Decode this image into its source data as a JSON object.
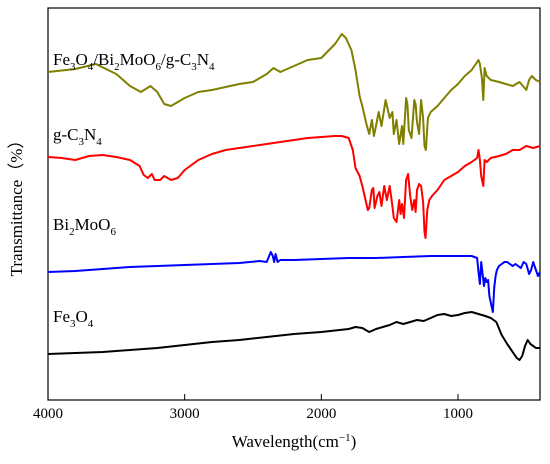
{
  "chart_data": {
    "type": "line",
    "title": "",
    "xlabel": "Wavelength(cm",
    "xlabel_sup": "−1",
    "xlabel_close": ")",
    "ylabel": "Transmittance（%）",
    "xlim": [
      4000,
      400
    ],
    "x_ticks": [
      4000,
      3000,
      2000,
      1000
    ],
    "x_tick_labels": [
      "4000",
      "3000",
      "2000",
      "1000"
    ],
    "y_ticks_shown": false,
    "grid": false,
    "series": [
      {
        "name": "Fe3O4/Bi2MoO6/g-C3N4",
        "color": "#808000",
        "label_parts": [
          [
            "Fe",
            "n"
          ],
          [
            "3",
            "s"
          ],
          [
            "O",
            "n"
          ],
          [
            "4",
            "s"
          ],
          [
            "/Bi",
            "n"
          ],
          [
            "2",
            "s"
          ],
          [
            "MoO",
            "n"
          ],
          [
            "6",
            "s"
          ],
          [
            "/g-C",
            "n"
          ],
          [
            "3",
            "s"
          ],
          [
            "N",
            "n"
          ],
          [
            "4",
            "s"
          ]
        ],
        "label_anchor": [
          4000,
          65
        ],
        "points": [
          [
            4000,
            72
          ],
          [
            3800,
            69
          ],
          [
            3650,
            64
          ],
          [
            3500,
            74
          ],
          [
            3400,
            86
          ],
          [
            3320,
            92
          ],
          [
            3250,
            86
          ],
          [
            3200,
            92
          ],
          [
            3150,
            104
          ],
          [
            3100,
            106
          ],
          [
            3000,
            98
          ],
          [
            2900,
            92
          ],
          [
            2800,
            90
          ],
          [
            2600,
            84
          ],
          [
            2500,
            82
          ],
          [
            2400,
            74
          ],
          [
            2350,
            68
          ],
          [
            2300,
            72
          ],
          [
            2200,
            66
          ],
          [
            2100,
            60
          ],
          [
            2000,
            58
          ],
          [
            1900,
            44
          ],
          [
            1850,
            34
          ],
          [
            1820,
            38
          ],
          [
            1780,
            50
          ],
          [
            1750,
            70
          ],
          [
            1720,
            96
          ],
          [
            1700,
            106
          ],
          [
            1670,
            124
          ],
          [
            1650,
            134
          ],
          [
            1630,
            120
          ],
          [
            1615,
            136
          ],
          [
            1600,
            126
          ],
          [
            1580,
            112
          ],
          [
            1560,
            126
          ],
          [
            1530,
            100
          ],
          [
            1500,
            118
          ],
          [
            1480,
            112
          ],
          [
            1470,
            134
          ],
          [
            1450,
            120
          ],
          [
            1430,
            144
          ],
          [
            1410,
            126
          ],
          [
            1400,
            144
          ],
          [
            1380,
            98
          ],
          [
            1370,
            104
          ],
          [
            1360,
            130
          ],
          [
            1340,
            138
          ],
          [
            1320,
            100
          ],
          [
            1310,
            104
          ],
          [
            1300,
            122
          ],
          [
            1285,
            134
          ],
          [
            1270,
            100
          ],
          [
            1255,
            118
          ],
          [
            1245,
            146
          ],
          [
            1235,
            150
          ],
          [
            1220,
            118
          ],
          [
            1200,
            112
          ],
          [
            1150,
            106
          ],
          [
            1100,
            98
          ],
          [
            1050,
            90
          ],
          [
            1000,
            84
          ],
          [
            950,
            76
          ],
          [
            900,
            70
          ],
          [
            880,
            66
          ],
          [
            860,
            62
          ],
          [
            850,
            60
          ],
          [
            840,
            64
          ],
          [
            825,
            78
          ],
          [
            815,
            100
          ],
          [
            805,
            68
          ],
          [
            790,
            76
          ],
          [
            760,
            80
          ],
          [
            700,
            82
          ],
          [
            650,
            84
          ],
          [
            600,
            86
          ],
          [
            550,
            82
          ],
          [
            500,
            90
          ],
          [
            480,
            80
          ],
          [
            460,
            76
          ],
          [
            430,
            80
          ],
          [
            400,
            82
          ]
        ]
      },
      {
        "name": "g-C3N4",
        "color": "#ff0000",
        "label_parts": [
          [
            "g-C",
            "n"
          ],
          [
            "3",
            "s"
          ],
          [
            "N",
            "n"
          ],
          [
            "4",
            "s"
          ]
        ],
        "label_anchor": [
          4000,
          140
        ],
        "points": [
          [
            4000,
            157
          ],
          [
            3900,
            158
          ],
          [
            3800,
            160
          ],
          [
            3700,
            156
          ],
          [
            3600,
            155
          ],
          [
            3500,
            157
          ],
          [
            3400,
            160
          ],
          [
            3330,
            166
          ],
          [
            3300,
            175
          ],
          [
            3270,
            178
          ],
          [
            3240,
            174
          ],
          [
            3220,
            180
          ],
          [
            3180,
            180
          ],
          [
            3150,
            176
          ],
          [
            3100,
            180
          ],
          [
            3050,
            178
          ],
          [
            3000,
            170
          ],
          [
            2900,
            160
          ],
          [
            2800,
            154
          ],
          [
            2700,
            150
          ],
          [
            2600,
            148
          ],
          [
            2500,
            146
          ],
          [
            2400,
            144
          ],
          [
            2300,
            142
          ],
          [
            2200,
            140
          ],
          [
            2100,
            138
          ],
          [
            2000,
            137
          ],
          [
            1900,
            136
          ],
          [
            1850,
            136
          ],
          [
            1800,
            138
          ],
          [
            1770,
            150
          ],
          [
            1750,
            168
          ],
          [
            1720,
            176
          ],
          [
            1700,
            186
          ],
          [
            1680,
            198
          ],
          [
            1660,
            210
          ],
          [
            1650,
            208
          ],
          [
            1630,
            190
          ],
          [
            1620,
            188
          ],
          [
            1610,
            208
          ],
          [
            1590,
            196
          ],
          [
            1575,
            192
          ],
          [
            1560,
            206
          ],
          [
            1540,
            186
          ],
          [
            1520,
            200
          ],
          [
            1500,
            186
          ],
          [
            1480,
            206
          ],
          [
            1470,
            218
          ],
          [
            1450,
            222
          ],
          [
            1430,
            200
          ],
          [
            1420,
            214
          ],
          [
            1410,
            204
          ],
          [
            1395,
            218
          ],
          [
            1380,
            180
          ],
          [
            1365,
            174
          ],
          [
            1350,
            196
          ],
          [
            1335,
            210
          ],
          [
            1320,
            200
          ],
          [
            1310,
            212
          ],
          [
            1300,
            190
          ],
          [
            1285,
            184
          ],
          [
            1270,
            186
          ],
          [
            1255,
            202
          ],
          [
            1245,
            232
          ],
          [
            1238,
            238
          ],
          [
            1225,
            210
          ],
          [
            1210,
            200
          ],
          [
            1190,
            196
          ],
          [
            1150,
            190
          ],
          [
            1100,
            180
          ],
          [
            1050,
            176
          ],
          [
            1000,
            172
          ],
          [
            950,
            166
          ],
          [
            900,
            162
          ],
          [
            880,
            160
          ],
          [
            860,
            158
          ],
          [
            850,
            150
          ],
          [
            840,
            160
          ],
          [
            830,
            176
          ],
          [
            815,
            186
          ],
          [
            805,
            160
          ],
          [
            790,
            162
          ],
          [
            760,
            158
          ],
          [
            700,
            156
          ],
          [
            650,
            154
          ],
          [
            600,
            150
          ],
          [
            550,
            150
          ],
          [
            500,
            146
          ],
          [
            450,
            148
          ],
          [
            400,
            146
          ]
        ]
      },
      {
        "name": "Bi2MoO6",
        "color": "#0000ff",
        "label_parts": [
          [
            "Bi",
            "n"
          ],
          [
            "2",
            "s"
          ],
          [
            "MoO",
            "n"
          ],
          [
            "6",
            "s"
          ]
        ],
        "label_anchor": [
          4000,
          230
        ],
        "points": [
          [
            4000,
            272
          ],
          [
            3800,
            271
          ],
          [
            3600,
            269
          ],
          [
            3400,
            267
          ],
          [
            3200,
            266
          ],
          [
            3000,
            265
          ],
          [
            2800,
            264
          ],
          [
            2600,
            263
          ],
          [
            2450,
            261
          ],
          [
            2400,
            262
          ],
          [
            2370,
            252
          ],
          [
            2355,
            256
          ],
          [
            2345,
            262
          ],
          [
            2335,
            254
          ],
          [
            2320,
            262
          ],
          [
            2300,
            260
          ],
          [
            2200,
            260
          ],
          [
            2000,
            259
          ],
          [
            1800,
            258
          ],
          [
            1600,
            258
          ],
          [
            1400,
            257
          ],
          [
            1200,
            256
          ],
          [
            1000,
            256
          ],
          [
            900,
            256
          ],
          [
            860,
            258
          ],
          [
            850,
            272
          ],
          [
            840,
            284
          ],
          [
            830,
            262
          ],
          [
            820,
            274
          ],
          [
            810,
            286
          ],
          [
            800,
            278
          ],
          [
            790,
            282
          ],
          [
            780,
            280
          ],
          [
            770,
            296
          ],
          [
            755,
            306
          ],
          [
            745,
            312
          ],
          [
            735,
            288
          ],
          [
            725,
            276
          ],
          [
            715,
            270
          ],
          [
            700,
            266
          ],
          [
            680,
            264
          ],
          [
            660,
            262
          ],
          [
            640,
            262
          ],
          [
            620,
            264
          ],
          [
            600,
            266
          ],
          [
            580,
            264
          ],
          [
            560,
            266
          ],
          [
            540,
            268
          ],
          [
            520,
            262
          ],
          [
            500,
            264
          ],
          [
            480,
            274
          ],
          [
            465,
            270
          ],
          [
            450,
            262
          ],
          [
            430,
            270
          ],
          [
            415,
            276
          ],
          [
            400,
            272
          ]
        ]
      },
      {
        "name": "Fe3O4",
        "color": "#000000",
        "label_parts": [
          [
            "Fe",
            "n"
          ],
          [
            "3",
            "s"
          ],
          [
            "O",
            "n"
          ],
          [
            "4",
            "s"
          ]
        ],
        "label_anchor": [
          4000,
          322
        ],
        "points": [
          [
            4000,
            354
          ],
          [
            3800,
            353
          ],
          [
            3600,
            352
          ],
          [
            3400,
            350
          ],
          [
            3200,
            348
          ],
          [
            3000,
            345
          ],
          [
            2800,
            342
          ],
          [
            2600,
            340
          ],
          [
            2400,
            337
          ],
          [
            2200,
            334
          ],
          [
            2000,
            332
          ],
          [
            1800,
            329
          ],
          [
            1750,
            327
          ],
          [
            1700,
            328
          ],
          [
            1650,
            332
          ],
          [
            1600,
            329
          ],
          [
            1550,
            327
          ],
          [
            1500,
            325
          ],
          [
            1450,
            322
          ],
          [
            1400,
            324
          ],
          [
            1350,
            322
          ],
          [
            1300,
            320
          ],
          [
            1250,
            321
          ],
          [
            1200,
            318
          ],
          [
            1150,
            315
          ],
          [
            1100,
            314
          ],
          [
            1050,
            316
          ],
          [
            1000,
            315
          ],
          [
            950,
            313
          ],
          [
            900,
            312
          ],
          [
            850,
            314
          ],
          [
            800,
            316
          ],
          [
            760,
            318
          ],
          [
            720,
            322
          ],
          [
            680,
            335
          ],
          [
            640,
            344
          ],
          [
            610,
            350
          ],
          [
            590,
            354
          ],
          [
            570,
            358
          ],
          [
            550,
            360
          ],
          [
            530,
            356
          ],
          [
            510,
            346
          ],
          [
            490,
            340
          ],
          [
            470,
            344
          ],
          [
            450,
            346
          ],
          [
            430,
            348
          ],
          [
            400,
            348
          ]
        ]
      }
    ]
  }
}
